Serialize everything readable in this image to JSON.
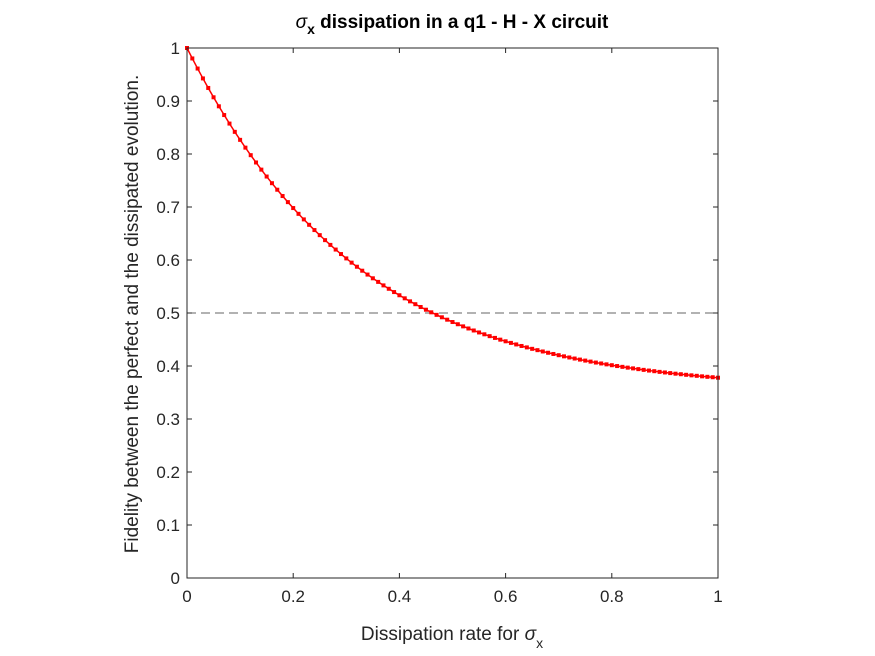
{
  "chart_data": {
    "type": "line",
    "title": {
      "symbol": "σ",
      "subscript": "x",
      "rest": " dissipation in a q1 - H - X circuit"
    },
    "xlabel": {
      "text": "Dissipation rate for ",
      "symbol": "σ",
      "subscript": "x"
    },
    "ylabel": "Fidelity between the perfect and the dissipated evolution.",
    "xlim": [
      0,
      1
    ],
    "ylim": [
      0,
      1
    ],
    "xticks": [
      0,
      0.2,
      0.4,
      0.6,
      0.8,
      1
    ],
    "xtick_labels": [
      "0",
      "0.2",
      "0.4",
      "0.6",
      "0.8",
      "1"
    ],
    "yticks": [
      0,
      0.1,
      0.2,
      0.3,
      0.4,
      0.5,
      0.6,
      0.7,
      0.8,
      0.9,
      1
    ],
    "ytick_labels": [
      "0",
      "0.1",
      "0.2",
      "0.3",
      "0.4",
      "0.5",
      "0.6",
      "0.7",
      "0.8",
      "0.9",
      "1"
    ],
    "grid": false,
    "reference_line": {
      "y": 0.5,
      "style": "dashed",
      "color": "#666666"
    },
    "series": [
      {
        "color": "#ff0000",
        "marker": "square",
        "x": [
          0,
          0.01,
          0.02,
          0.03,
          0.04,
          0.05,
          0.06,
          0.07,
          0.08,
          0.09,
          0.1,
          0.11,
          0.12,
          0.13,
          0.14,
          0.15,
          0.16,
          0.17,
          0.18,
          0.19,
          0.2,
          0.21,
          0.22,
          0.23,
          0.24,
          0.25,
          0.26,
          0.27,
          0.28,
          0.29,
          0.3,
          0.31,
          0.32,
          0.33,
          0.34,
          0.35,
          0.36,
          0.37,
          0.38,
          0.39,
          0.4,
          0.41,
          0.42,
          0.43,
          0.44,
          0.45,
          0.46,
          0.47,
          0.48,
          0.49,
          0.5,
          0.51,
          0.52,
          0.53,
          0.54,
          0.55,
          0.56,
          0.57,
          0.58,
          0.59,
          0.6,
          0.61,
          0.62,
          0.63,
          0.64,
          0.65,
          0.66,
          0.67,
          0.68,
          0.69,
          0.7,
          0.71,
          0.72,
          0.73,
          0.74,
          0.75,
          0.76,
          0.77,
          0.78,
          0.79,
          0.8,
          0.81,
          0.82,
          0.83,
          0.84,
          0.85,
          0.86,
          0.87,
          0.88,
          0.89,
          0.9,
          0.91,
          0.92,
          0.93,
          0.94,
          0.95,
          0.96,
          0.97,
          0.98,
          0.99,
          1
        ],
        "y": [
          1.0,
          0.9803,
          0.9612,
          0.9426,
          0.9246,
          0.907,
          0.89,
          0.8735,
          0.8574,
          0.8418,
          0.8267,
          0.812,
          0.7978,
          0.784,
          0.7705,
          0.7575,
          0.7449,
          0.7326,
          0.7207,
          0.7092,
          0.698,
          0.6871,
          0.6766,
          0.6664,
          0.6565,
          0.6469,
          0.6375,
          0.6285,
          0.6197,
          0.6112,
          0.603,
          0.595,
          0.5873,
          0.5798,
          0.5725,
          0.5655,
          0.5587,
          0.5521,
          0.5457,
          0.5395,
          0.5335,
          0.5277,
          0.522,
          0.5166,
          0.5113,
          0.5062,
          0.5013,
          0.4965,
          0.4919,
          0.4874,
          0.483,
          0.4788,
          0.4748,
          0.4708,
          0.467,
          0.4633,
          0.4598,
          0.4563,
          0.453,
          0.4497,
          0.4466,
          0.4436,
          0.4407,
          0.4378,
          0.4351,
          0.4324,
          0.4299,
          0.4274,
          0.425,
          0.4227,
          0.4204,
          0.4182,
          0.4161,
          0.4141,
          0.4121,
          0.4102,
          0.4083,
          0.4065,
          0.4048,
          0.4031,
          0.4015,
          0.3999,
          0.3984,
          0.3969,
          0.3955,
          0.3941,
          0.3927,
          0.3914,
          0.3902,
          0.3889,
          0.3878,
          0.3866,
          0.3855,
          0.3845,
          0.3834,
          0.3824,
          0.3815,
          0.3805,
          0.3796,
          0.3788,
          0.3779
        ]
      }
    ]
  }
}
